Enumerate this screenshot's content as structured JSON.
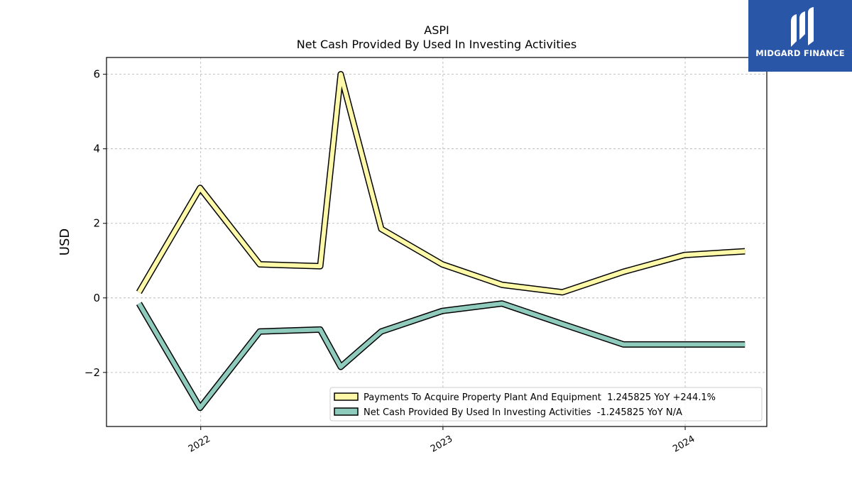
{
  "logo": {
    "text": "MIDGARD FINANCE",
    "bg_color": "#2a56a8"
  },
  "chart_data": {
    "type": "line",
    "title": "ASPI",
    "subtitle": "Net Cash Provided By Used In Investing Activities",
    "xlabel": "",
    "ylabel": "USD",
    "x": [
      "2021-09-30",
      "2021-12-31",
      "2022-03-31",
      "2022-06-30",
      "2022-07-31",
      "2022-09-30",
      "2022-12-31",
      "2023-03-31",
      "2023-06-30",
      "2023-09-30",
      "2023-12-31",
      "2024-03-31"
    ],
    "x_ticks": [
      "2022",
      "2023",
      "2024"
    ],
    "y_ticks": [
      "6",
      "4",
      "2",
      "0",
      "−2"
    ],
    "ylim": [
      -3.45,
      6.45
    ],
    "grid": true,
    "legend_position": "lower-right",
    "series": [
      {
        "name": "Payments To Acquire Property Plant And Equipment  1.245825 YoY +244.1%",
        "color": "#fdf9a9",
        "values": [
          0.15,
          2.95,
          0.9,
          0.85,
          6.0,
          1.85,
          0.9,
          0.35,
          0.15,
          0.7,
          1.15,
          1.25
        ]
      },
      {
        "name": "Net Cash Provided By Used In Investing Activities  -1.245825 YoY N/A",
        "color": "#8ecbbd",
        "values": [
          -0.15,
          -2.95,
          -0.9,
          -0.85,
          -1.85,
          -0.9,
          -0.35,
          -0.15,
          -0.7,
          -1.25,
          -1.25,
          -1.25
        ]
      }
    ]
  }
}
